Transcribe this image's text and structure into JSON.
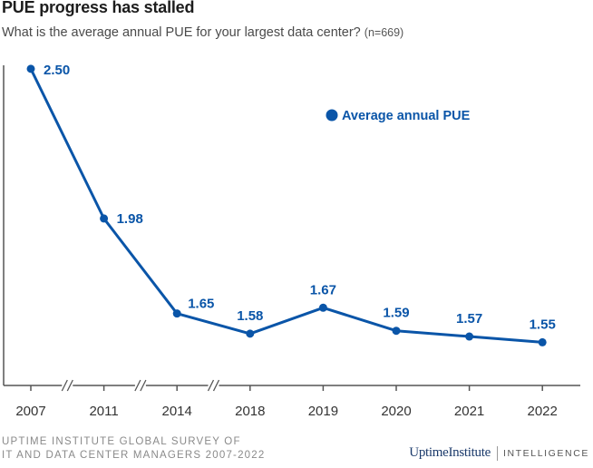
{
  "header": {
    "title": "PUE progress has stalled",
    "subtitle": "What is the average annual PUE for your largest data center?",
    "sample_note": "(n=669)"
  },
  "footer": {
    "source_line1": "UPTIME INSTITUTE GLOBAL SURVEY OF",
    "source_line2": "IT AND DATA CENTER MANAGERS 2007-2022",
    "brand_logo": "UptimeInstitute",
    "brand_tagline": "INTELLIGENCE"
  },
  "colors": {
    "series": "#0a55a8",
    "axis": "#555555",
    "tick_text": "#333333"
  },
  "chart_data": {
    "type": "line",
    "categories": [
      "2007",
      "2011",
      "2014",
      "2018",
      "2019",
      "2020",
      "2021",
      "2022"
    ],
    "series": [
      {
        "name": "Average annual PUE",
        "values": [
          2.5,
          1.98,
          1.65,
          1.58,
          1.67,
          1.59,
          1.57,
          1.55
        ]
      }
    ],
    "data_labels": [
      "2.50",
      "1.98",
      "1.65",
      "1.58",
      "1.67",
      "1.59",
      "1.57",
      "1.55"
    ],
    "axis_breaks_between": [
      [
        "2007",
        "2011"
      ],
      [
        "2011",
        "2014"
      ],
      [
        "2014",
        "2018"
      ]
    ],
    "ylim": [
      1.4,
      2.55
    ],
    "grid": false,
    "legend_position": "top-right"
  }
}
